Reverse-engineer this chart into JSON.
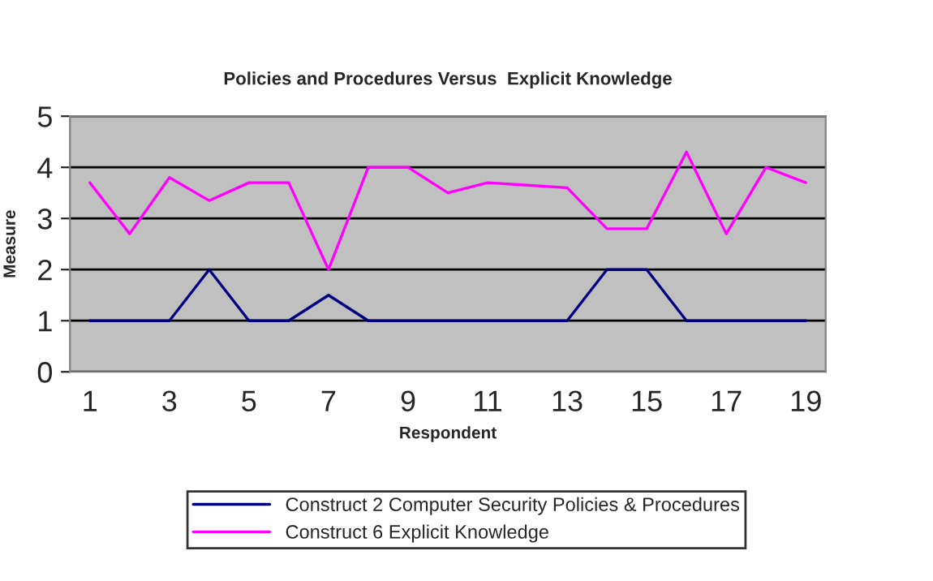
{
  "chart_data": {
    "type": "line",
    "title": "Policies and Procedures Versus  Explicit Knowledge",
    "xlabel": "Respondent",
    "ylabel": "Measure",
    "categories": [
      "1",
      null,
      "3",
      null,
      "5",
      null,
      "7",
      null,
      "9",
      null,
      "11",
      null,
      "13",
      null,
      "15",
      null,
      "17",
      null,
      "19"
    ],
    "series": [
      {
        "name": "Construct 2 Computer Security Policies & Procedures",
        "color": "#000080",
        "values": [
          1,
          1,
          1,
          2,
          1,
          1,
          1.5,
          1,
          1,
          1,
          1,
          1,
          1,
          2,
          2,
          1,
          1,
          1,
          1
        ]
      },
      {
        "name": "Construct 6 Explicit Knowledge",
        "color": "#ff00ff",
        "values": [
          3.7,
          2.7,
          3.8,
          3.35,
          3.7,
          3.7,
          2,
          4,
          4,
          3.5,
          3.7,
          3.65,
          3.6,
          2.8,
          2.8,
          4.3,
          2.7,
          4,
          3.7
        ]
      }
    ],
    "ylim": [
      0,
      5
    ],
    "yticks": [
      0,
      1,
      2,
      3,
      4,
      5
    ],
    "grid": "y",
    "legend": "bottom",
    "marker": "none",
    "line_style": "solid"
  }
}
